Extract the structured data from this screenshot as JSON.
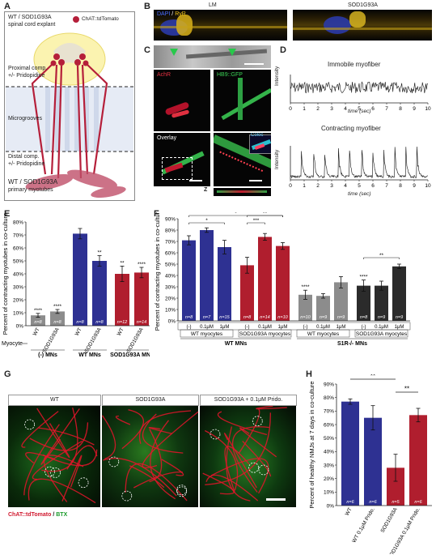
{
  "panel_labels": {
    "a": "A",
    "b": "B",
    "c": "C",
    "d": "D",
    "e": "E",
    "f": "F",
    "g": "G",
    "h": "H"
  },
  "a": {
    "title_line1": "WT / SOD1G93A",
    "title_line2": "spinal cord explant",
    "legend": "ChAT::tdTomato",
    "proximal": "Proximal comp.",
    "proximal_sub": "+/- Pridopidine",
    "microgrooves": "Microgrooves",
    "distal": "Distal comp.",
    "distal_sub": "+/- Pridopidine",
    "bottom_line1": "WT / SOD1G93A",
    "bottom_line2": "primary myotubes"
  },
  "b": {
    "stain_dapi": "DAPI",
    "stain_sep": " / ",
    "stain_ryr": "RyR",
    "lm": "LM",
    "sod": "SOD1G93A"
  },
  "c": {
    "achr": "AchR",
    "hb9": "HB9::GFP",
    "overlay": "Overlay",
    "coloc": "Coloc",
    "z": "Z"
  },
  "d": {
    "immobile_title": "Immobile myofiber",
    "contracting_title": "Contracting myofiber",
    "ylabel": "Intensity",
    "xlabel": "time (sec)",
    "ticks": [
      "0",
      "1",
      "2",
      "3",
      "4",
      "5",
      "6",
      "7",
      "8",
      "9",
      "10"
    ]
  },
  "e": {
    "chart_data": {
      "type": "bar",
      "ylabel": "Percent of contracting myotubes in co-culture",
      "yticks": [
        "0%",
        "10%",
        "20%",
        "30%",
        "40%",
        "50%",
        "60%",
        "70%",
        "80%"
      ],
      "ylim": [
        0,
        80
      ],
      "categories": [
        "WT",
        "SOD1G93A",
        "WT",
        "SOD1G93A",
        "WT",
        "SOD1G93A"
      ],
      "values": [
        8,
        11,
        71,
        50,
        40,
        41
      ],
      "errors": [
        1.5,
        1.5,
        4,
        4,
        6,
        4
      ],
      "n": [
        "n=8",
        "n=8",
        "n=8",
        "n=8",
        "n=12",
        "n=14"
      ],
      "sig": [
        "****",
        "****",
        "",
        "**",
        "**",
        "****"
      ],
      "colors": [
        "#8c8c8c",
        "#8c8c8c",
        "#2e3192",
        "#2e3192",
        "#b01e2e",
        "#b01e2e"
      ],
      "groups": [
        "(-) MNs",
        "WT MNs",
        "SOD1G93A MNs"
      ],
      "myocyte_label": "Myocyte"
    }
  },
  "f": {
    "chart_data": {
      "type": "bar",
      "ylabel": "Percent of contracting myotubes in co-culture",
      "yticks": [
        "0%",
        "10%",
        "20%",
        "30%",
        "40%",
        "50%",
        "60%",
        "70%",
        "80%",
        "90%"
      ],
      "ylim": [
        0,
        90
      ],
      "categories": [
        "(-)",
        "0.1μM",
        "1μM",
        "(-)",
        "0.1μM",
        "1μM",
        "(-)",
        "0.1μM",
        "1μM",
        "(-)",
        "0.1μM",
        "1μM"
      ],
      "values": [
        71,
        80,
        65,
        49,
        74,
        66,
        23,
        22,
        34,
        31,
        31,
        48
      ],
      "errors": [
        4,
        2,
        6,
        7,
        3,
        3,
        4,
        2,
        5,
        5,
        4,
        2
      ],
      "n": [
        "n=8",
        "n=7",
        "n=15",
        "n=8",
        "n=14",
        "n=10",
        "n=10",
        "n=9",
        "n=9",
        "n=8",
        "n=9",
        "n=9"
      ],
      "sig": [
        "",
        "",
        "",
        "",
        "",
        "",
        "****",
        "",
        "",
        "****",
        "",
        ""
      ],
      "colors": [
        "#2e3192",
        "#2e3192",
        "#2e3192",
        "#b01e2e",
        "#b01e2e",
        "#b01e2e",
        "#8c8c8c",
        "#8c8c8c",
        "#8c8c8c",
        "#2b2b2b",
        "#2b2b2b",
        "#2b2b2b"
      ],
      "myocyte_groups": [
        "WT myocytes",
        "SOD1G93A myocytes",
        "WT myocytes",
        "SOD1G93A myocytes"
      ],
      "mn_groups": [
        "WT MNs",
        "S1R-/- MNs"
      ],
      "brackets": [
        {
          "from": 0,
          "to": 5,
          "label": "*"
        },
        {
          "from": 0,
          "to": 2,
          "label": "*"
        },
        {
          "from": 3,
          "to": 5,
          "label": "**"
        },
        {
          "from": 3,
          "to": 4,
          "label": "***"
        },
        {
          "from": 9,
          "to": 11,
          "label": "**"
        }
      ]
    }
  },
  "g": {
    "wt": "WT",
    "sod": "SOD1G93A",
    "sod_prido": "SOD1G93A + 0.1μM Prido.",
    "caption_red": "ChAT::tdTomato",
    "caption_sep": " / ",
    "caption_green": "BTX"
  },
  "h": {
    "chart_data": {
      "type": "bar",
      "ylabel": "Percent of healthy NMJs at 7 days in co-culture",
      "yticks": [
        "0%",
        "10%",
        "20%",
        "30%",
        "40%",
        "50%",
        "60%",
        "70%",
        "80%",
        "90%"
      ],
      "ylim": [
        0,
        90
      ],
      "categories": [
        "WT",
        "WT 0.1μM Prido.",
        "SOD1G93A",
        "SOD1G93A 0.1μM Prido."
      ],
      "values": [
        77,
        65,
        28,
        67
      ],
      "errors": [
        2,
        9,
        10,
        5
      ],
      "n": [
        "n=6",
        "n=6",
        "n=5",
        "n=6"
      ],
      "colors": [
        "#2e3192",
        "#2e3192",
        "#b01e2e",
        "#b01e2e"
      ],
      "brackets": [
        {
          "from": 0,
          "to": 2,
          "label": "**"
        },
        {
          "from": 2,
          "to": 3,
          "label": "**"
        }
      ]
    }
  }
}
